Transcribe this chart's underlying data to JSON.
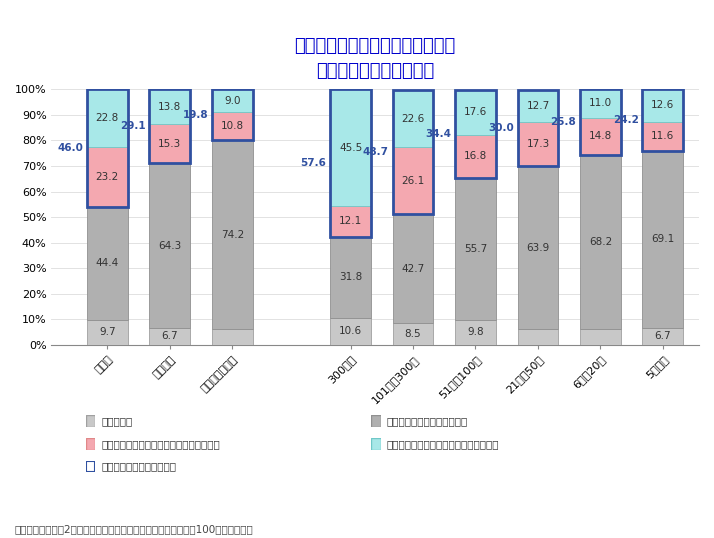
{
  "title": "企業のテレワーク実施状況と見解",
  "subtitle": "～規模別・従業員数別～",
  "title_color": "#0000CC",
  "categories": [
    "大企業",
    "中小企業",
    "うち小規模企業",
    "300人超",
    "101人～300人",
    "51人～100人",
    "21人～50人",
    "6人～20人",
    "5人以下"
  ],
  "layers": {
    "wakaranu": [
      9.7,
      6.7,
      6.0,
      10.6,
      8.5,
      9.8,
      6.0,
      6.0,
      6.7
    ],
    "not_impl": [
      44.4,
      64.3,
      74.2,
      31.8,
      42.7,
      55.7,
      63.9,
      68.2,
      69.1
    ],
    "demerit": [
      23.2,
      15.3,
      10.8,
      12.1,
      26.1,
      16.8,
      17.3,
      14.8,
      11.6
    ],
    "merit": [
      22.8,
      13.8,
      9.0,
      45.5,
      22.6,
      17.6,
      12.7,
      11.0,
      12.6
    ],
    "impl": [
      46.0,
      29.1,
      19.8,
      57.6,
      48.7,
      34.4,
      30.0,
      25.8,
      24.2
    ]
  },
  "colors": {
    "wakaranu": "#C8C8C8",
    "not_impl": "#B0B0B0",
    "demerit": "#F4A8B0",
    "merit": "#A8E8E8"
  },
  "edge_colors": {
    "wakaranu": "#A0A0A0",
    "not_impl": "#909090",
    "demerit": "#E08888",
    "merit": "#70C8C8",
    "impl": "#3050A0"
  },
  "legend_labels": {
    "wakaranu": "分からない",
    "not_impl": "テレワークを実施していない",
    "demerit": "テレワークを実施：デメリットの方が多い",
    "merit": "テレワークを実施：メリットの方が多い",
    "impl": "テレワークを実施している"
  },
  "note": "注：小数点以下第2位を四捨五入しているため、合計は必ずしも100とはならない",
  "ylim": [
    0,
    100
  ],
  "yticks": [
    0,
    10,
    20,
    30,
    40,
    50,
    60,
    70,
    80,
    90,
    100
  ]
}
